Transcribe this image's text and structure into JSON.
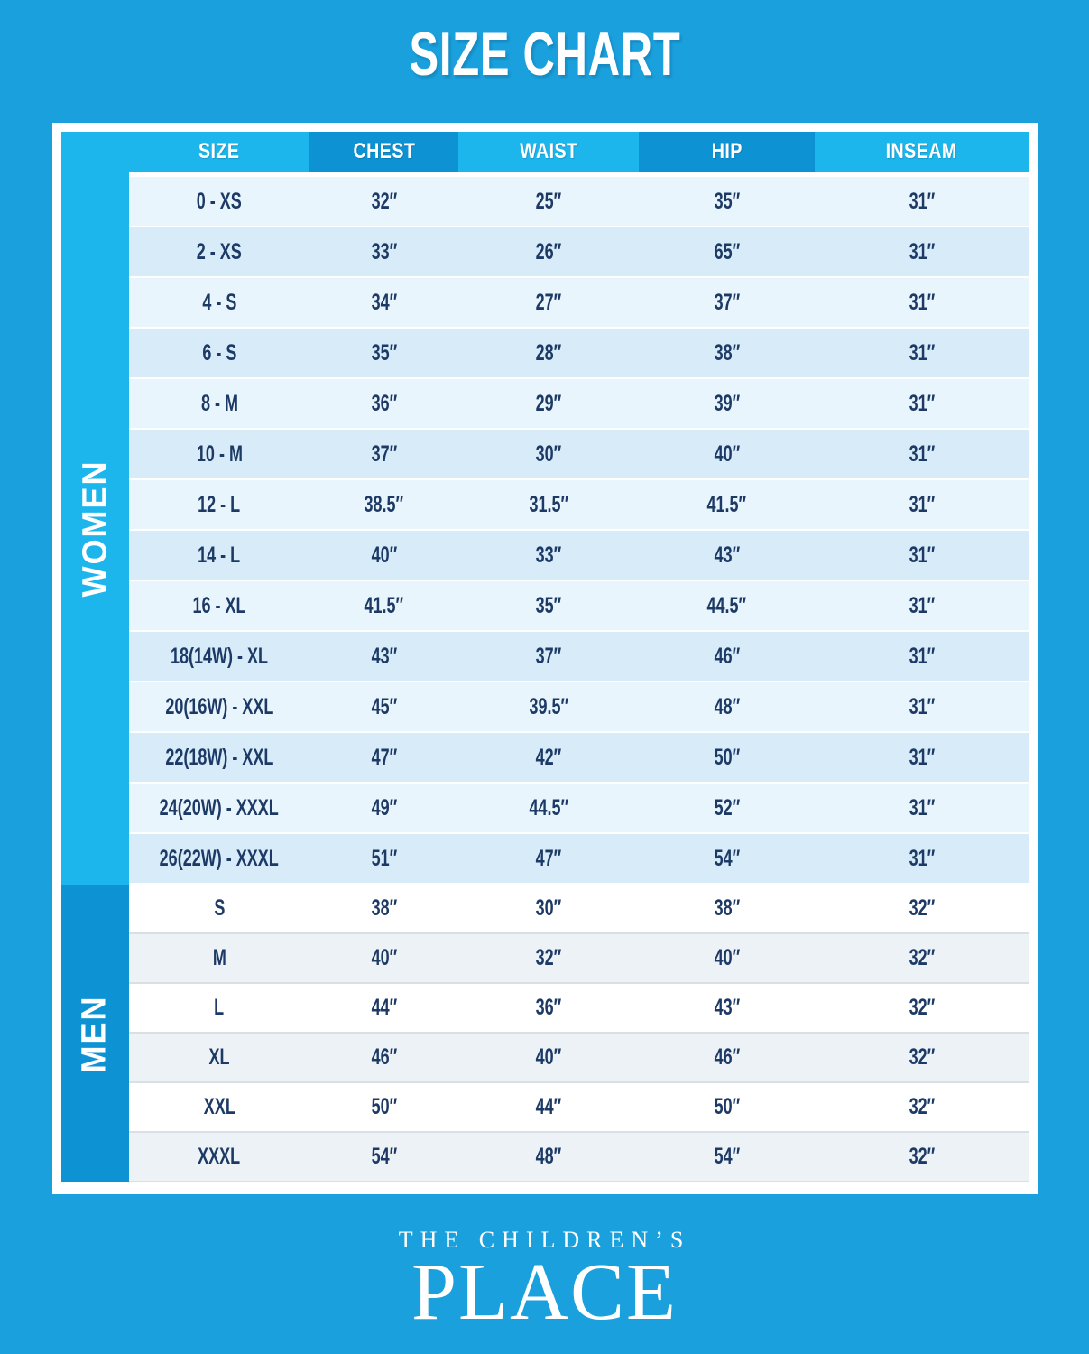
{
  "chart_data": {
    "type": "table",
    "title": "SIZE CHART",
    "columns": [
      "SIZE",
      "CHEST",
      "WAIST",
      "HIP",
      "INSEAM"
    ],
    "sections": [
      {
        "label": "WOMEN",
        "rows": [
          [
            "0 - XS",
            "32″",
            "25″",
            "35″",
            "31″"
          ],
          [
            "2 - XS",
            "33″",
            "26″",
            "65″",
            "31″"
          ],
          [
            "4 - S",
            "34″",
            "27″",
            "37″",
            "31″"
          ],
          [
            "6 - S",
            "35″",
            "28″",
            "38″",
            "31″"
          ],
          [
            "8 - M",
            "36″",
            "29″",
            "39″",
            "31″"
          ],
          [
            "10 - M",
            "37″",
            "30″",
            "40″",
            "31″"
          ],
          [
            "12 - L",
            "38.5″",
            "31.5″",
            "41.5″",
            "31″"
          ],
          [
            "14 - L",
            "40″",
            "33″",
            "43″",
            "31″"
          ],
          [
            "16 - XL",
            "41.5″",
            "35″",
            "44.5″",
            "31″"
          ],
          [
            "18(14W) - XL",
            "43″",
            "37″",
            "46″",
            "31″"
          ],
          [
            "20(16W) - XXL",
            "45″",
            "39.5″",
            "48″",
            "31″"
          ],
          [
            "22(18W) - XXL",
            "47″",
            "42″",
            "50″",
            "31″"
          ],
          [
            "24(20W) - XXXL",
            "49″",
            "44.5″",
            "52″",
            "31″"
          ],
          [
            "26(22W) - XXXL",
            "51″",
            "47″",
            "54″",
            "31″"
          ]
        ]
      },
      {
        "label": "MEN",
        "rows": [
          [
            "S",
            "38″",
            "30″",
            "38″",
            "32″"
          ],
          [
            "M",
            "40″",
            "32″",
            "40″",
            "32″"
          ],
          [
            "L",
            "44″",
            "36″",
            "43″",
            "32″"
          ],
          [
            "XL",
            "46″",
            "40″",
            "46″",
            "32″"
          ],
          [
            "XXL",
            "50″",
            "44″",
            "50″",
            "32″"
          ],
          [
            "XXXL",
            "54″",
            "48″",
            "54″",
            "32″"
          ]
        ]
      }
    ]
  },
  "footer": {
    "brand_top": "THE CHILDREN’S",
    "brand_bottom": "PLACE"
  },
  "colors": {
    "background": "#1aa0dc",
    "band_cyan": "#1db6ec",
    "band_dark": "#0d93d3",
    "row_light": "#e9f5fc",
    "row_mid": "#d7ecf8",
    "row_white": "#ffffff",
    "row_gray": "#edf2f6",
    "text_navy": "#1d3a66",
    "text_white": "#ffffff"
  }
}
